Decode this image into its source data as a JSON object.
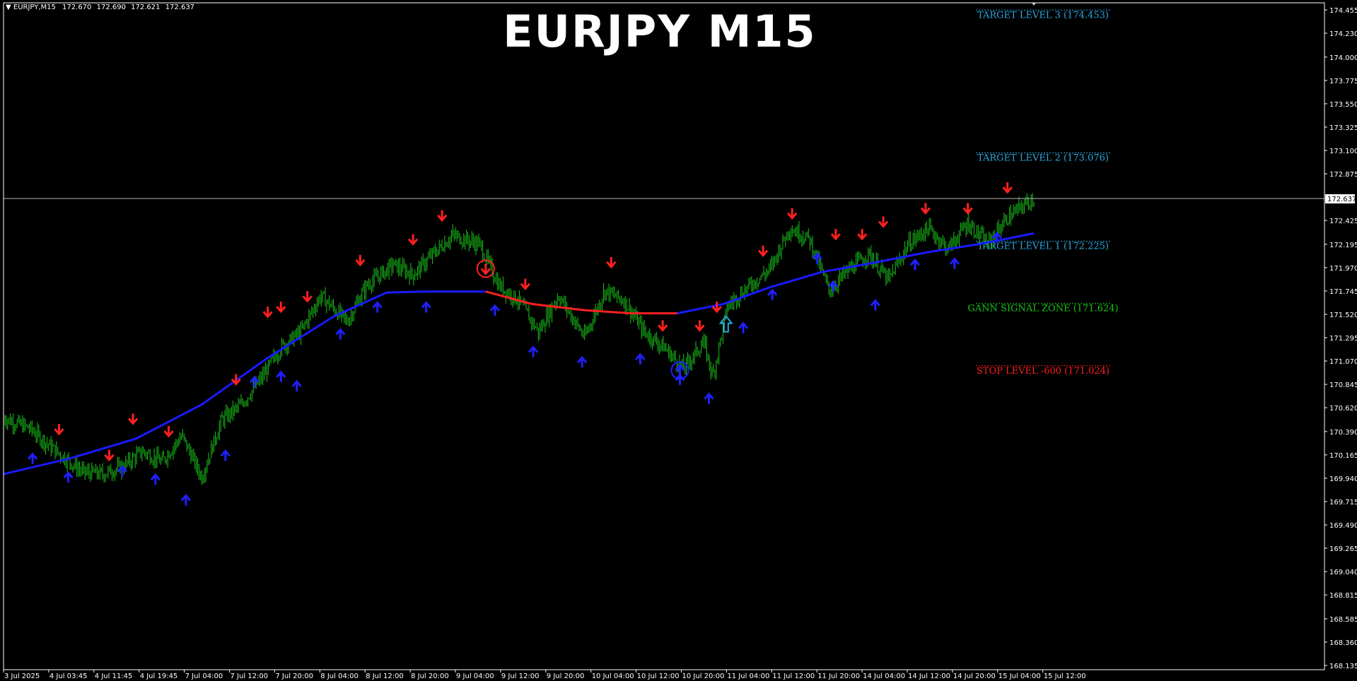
{
  "header": {
    "symbol_label": "▼ EURJPY,M15",
    "ohlc": [
      "172.670",
      "172.690",
      "172.621",
      "172.637"
    ]
  },
  "colors": {
    "background": "#000000",
    "candles": "#19c519",
    "ma_up": "#1a1aff",
    "ma_down": "#ff2020",
    "buy_arrow": "#2020ff",
    "sell_arrow": "#ff2020",
    "target": "#2aa8e0",
    "gann": "#19c519",
    "stop": "#ff2020",
    "axis": "#ffffff",
    "price_line": "#b8b8b8"
  },
  "chart_data": {
    "type": "candlestick",
    "title": "EURJPY M15",
    "symbol": "EURJPY",
    "timeframe": "M15",
    "current_price": 172.637,
    "current_price_label": "172.637",
    "ylim": [
      168.135,
      174.5
    ],
    "x_ticks": [
      "3 Jul 2025",
      "4 Jul 03:45",
      "4 Jul 11:45",
      "4 Jul 19:45",
      "7 Jul 04:00",
      "7 Jul 12:00",
      "7 Jul 20:00",
      "8 Jul 04:00",
      "8 Jul 12:00",
      "8 Jul 20:00",
      "9 Jul 04:00",
      "9 Jul 12:00",
      "9 Jul 20:00",
      "10 Jul 04:00",
      "10 Jul 12:00",
      "10 Jul 20:00",
      "11 Jul 04:00",
      "11 Jul 12:00",
      "11 Jul 20:00",
      "14 Jul 04:00",
      "14 Jul 12:00",
      "14 Jul 20:00",
      "15 Jul 04:00",
      "15 Jul 12:00"
    ],
    "y_ticks": [
      {
        "value": 174.455,
        "label": "174.455"
      },
      {
        "value": 174.23,
        "label": "174.230"
      },
      {
        "value": 174.0,
        "label": "174.000"
      },
      {
        "value": 173.775,
        "label": "173.775"
      },
      {
        "value": 173.55,
        "label": "173.550"
      },
      {
        "value": 173.325,
        "label": "173.325"
      },
      {
        "value": 173.1,
        "label": "173.100"
      },
      {
        "value": 172.875,
        "label": "172.875"
      },
      {
        "value": 172.425,
        "label": "172.425"
      },
      {
        "value": 172.195,
        "label": "172.195"
      },
      {
        "value": 171.97,
        "label": "171.970"
      },
      {
        "value": 171.745,
        "label": "171.745"
      },
      {
        "value": 171.52,
        "label": "171.520"
      },
      {
        "value": 171.295,
        "label": "171.295"
      },
      {
        "value": 171.07,
        "label": "171.070"
      },
      {
        "value": 170.845,
        "label": "170.845"
      },
      {
        "value": 170.62,
        "label": "170.620"
      },
      {
        "value": 170.39,
        "label": "170.390"
      },
      {
        "value": 170.165,
        "label": "170.165"
      },
      {
        "value": 169.94,
        "label": "169.940"
      },
      {
        "value": 169.715,
        "label": "169.715"
      },
      {
        "value": 169.49,
        "label": "169.490"
      },
      {
        "value": 169.265,
        "label": "169.265"
      },
      {
        "value": 169.04,
        "label": "169.040"
      },
      {
        "value": 168.815,
        "label": "168.815"
      },
      {
        "value": 168.585,
        "label": "168.585"
      },
      {
        "value": 168.36,
        "label": "168.360"
      },
      {
        "value": 168.135,
        "label": "168.135"
      }
    ],
    "price_path": [
      [
        0,
        170.52
      ],
      [
        0.02,
        170.42
      ],
      [
        0.035,
        170.25
      ],
      [
        0.045,
        170.15
      ],
      [
        0.06,
        170.0
      ],
      [
        0.075,
        169.98
      ],
      [
        0.09,
        170.05
      ],
      [
        0.105,
        170.2
      ],
      [
        0.12,
        170.1
      ],
      [
        0.135,
        170.35
      ],
      [
        0.15,
        169.95
      ],
      [
        0.165,
        170.5
      ],
      [
        0.18,
        170.65
      ],
      [
        0.195,
        170.9
      ],
      [
        0.21,
        171.2
      ],
      [
        0.225,
        171.35
      ],
      [
        0.24,
        171.7
      ],
      [
        0.26,
        171.45
      ],
      [
        0.275,
        171.8
      ],
      [
        0.295,
        172.0
      ],
      [
        0.31,
        171.9
      ],
      [
        0.325,
        172.1
      ],
      [
        0.34,
        172.28
      ],
      [
        0.36,
        172.2
      ],
      [
        0.375,
        171.8
      ],
      [
        0.39,
        171.65
      ],
      [
        0.405,
        171.35
      ],
      [
        0.42,
        171.7
      ],
      [
        0.44,
        171.3
      ],
      [
        0.455,
        171.75
      ],
      [
        0.47,
        171.65
      ],
      [
        0.485,
        171.35
      ],
      [
        0.5,
        171.2
      ],
      [
        0.515,
        171.0
      ],
      [
        0.53,
        171.25
      ],
      [
        0.537,
        170.92
      ],
      [
        0.548,
        171.6
      ],
      [
        0.565,
        171.8
      ],
      [
        0.58,
        171.95
      ],
      [
        0.595,
        172.35
      ],
      [
        0.61,
        172.25
      ],
      [
        0.625,
        171.75
      ],
      [
        0.64,
        171.95
      ],
      [
        0.655,
        172.1
      ],
      [
        0.67,
        171.85
      ],
      [
        0.685,
        172.2
      ],
      [
        0.7,
        172.35
      ],
      [
        0.715,
        172.15
      ],
      [
        0.73,
        172.4
      ],
      [
        0.745,
        172.2
      ],
      [
        0.76,
        172.45
      ],
      [
        0.775,
        172.6
      ],
      [
        0.78,
        172.637
      ]
    ],
    "ma_path": [
      [
        0,
        169.98
      ],
      [
        0.05,
        170.13
      ],
      [
        0.1,
        170.32
      ],
      [
        0.15,
        170.65
      ],
      [
        0.2,
        171.1
      ],
      [
        0.25,
        171.5
      ],
      [
        0.29,
        171.73
      ],
      [
        0.32,
        171.74
      ],
      [
        0.365,
        171.74
      ],
      [
        0.4,
        171.62
      ],
      [
        0.44,
        171.56
      ],
      [
        0.475,
        171.53
      ],
      [
        0.51,
        171.53
      ],
      [
        0.545,
        171.62
      ],
      [
        0.58,
        171.78
      ],
      [
        0.62,
        171.93
      ],
      [
        0.66,
        172.02
      ],
      [
        0.7,
        172.12
      ],
      [
        0.74,
        172.2
      ],
      [
        0.78,
        172.3
      ]
    ],
    "ma_down_segment": [
      0.365,
      0.51
    ],
    "sell_signals": [
      [
        0.042,
        170.32
      ],
      [
        0.08,
        170.07
      ],
      [
        0.098,
        170.42
      ],
      [
        0.125,
        170.3
      ],
      [
        0.176,
        170.8
      ],
      [
        0.2,
        171.45
      ],
      [
        0.21,
        171.5
      ],
      [
        0.23,
        171.6
      ],
      [
        0.27,
        171.95
      ],
      [
        0.31,
        172.15
      ],
      [
        0.332,
        172.38
      ],
      [
        0.395,
        171.72
      ],
      [
        0.46,
        171.93
      ],
      [
        0.499,
        171.32
      ],
      [
        0.527,
        171.32
      ],
      [
        0.54,
        171.5
      ],
      [
        0.575,
        172.04
      ],
      [
        0.597,
        172.4
      ],
      [
        0.63,
        172.2
      ],
      [
        0.65,
        172.2
      ],
      [
        0.666,
        172.32
      ],
      [
        0.698,
        172.45
      ],
      [
        0.73,
        172.45
      ],
      [
        0.76,
        172.65
      ]
    ],
    "buy_signals": [
      [
        0.022,
        170.22
      ],
      [
        0.049,
        170.04
      ],
      [
        0.09,
        170.1
      ],
      [
        0.115,
        170.02
      ],
      [
        0.138,
        169.82
      ],
      [
        0.168,
        170.25
      ],
      [
        0.19,
        170.96
      ],
      [
        0.21,
        171.01
      ],
      [
        0.222,
        170.92
      ],
      [
        0.255,
        171.42
      ],
      [
        0.283,
        171.68
      ],
      [
        0.32,
        171.68
      ],
      [
        0.372,
        171.65
      ],
      [
        0.401,
        171.25
      ],
      [
        0.438,
        171.15
      ],
      [
        0.482,
        171.18
      ],
      [
        0.512,
        170.98
      ],
      [
        0.534,
        170.8
      ],
      [
        0.56,
        171.48
      ],
      [
        0.582,
        171.8
      ],
      [
        0.616,
        172.15
      ],
      [
        0.628,
        171.88
      ],
      [
        0.66,
        171.7
      ],
      [
        0.69,
        172.09
      ],
      [
        0.72,
        172.1
      ],
      [
        0.752,
        172.35
      ]
    ],
    "circle_sell": [
      0.365,
      171.96
    ],
    "circle_buy": [
      0.512,
      170.98
    ],
    "hollow_up_arrow": [
      0.547,
      171.42
    ],
    "levels": [
      {
        "label": "TARGET LEVEL 3 (174.453)",
        "value": 174.453,
        "color_key": "target"
      },
      {
        "label": "TARGET LEVEL 2 (173.076)",
        "value": 173.076,
        "color_key": "target"
      },
      {
        "label": "TARGET LEVEL 1 (172.225)",
        "value": 172.225,
        "color_key": "target"
      },
      {
        "label": "GANN SIGNAL ZONE (171.624)",
        "value": 171.624,
        "color_key": "gann"
      },
      {
        "label": "STOP LEVEL -600 (171.024)",
        "value": 171.024,
        "color_key": "stop"
      }
    ],
    "grid": false
  }
}
